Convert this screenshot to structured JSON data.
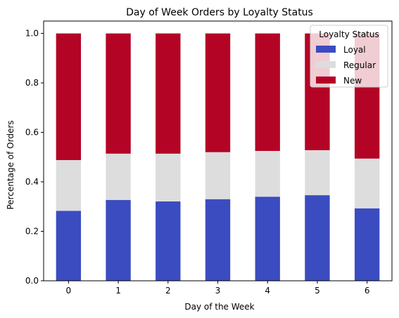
{
  "chart_data": {
    "type": "bar",
    "stacked": true,
    "title": "Day of Week Orders by Loyalty Status",
    "xlabel": "Day of the Week",
    "ylabel": "Percentage of Orders",
    "categories": [
      "0",
      "1",
      "2",
      "3",
      "4",
      "5",
      "6"
    ],
    "ylim": [
      0,
      1.05
    ],
    "yticks": [
      "0.0",
      "0.2",
      "0.4",
      "0.6",
      "0.8",
      "1.0"
    ],
    "grid": false,
    "legend": {
      "title": "Loyalty Status",
      "placement": "top-right"
    },
    "series": [
      {
        "name": "Loyal",
        "color": "#3b4cc0",
        "values": [
          0.283,
          0.327,
          0.321,
          0.33,
          0.34,
          0.346,
          0.293
        ]
      },
      {
        "name": "Regular",
        "color": "#dddddd",
        "values": [
          0.205,
          0.187,
          0.193,
          0.19,
          0.185,
          0.182,
          0.201
        ]
      },
      {
        "name": "New",
        "color": "#b40426",
        "values": [
          0.512,
          0.486,
          0.486,
          0.48,
          0.475,
          0.472,
          0.506
        ]
      }
    ]
  }
}
